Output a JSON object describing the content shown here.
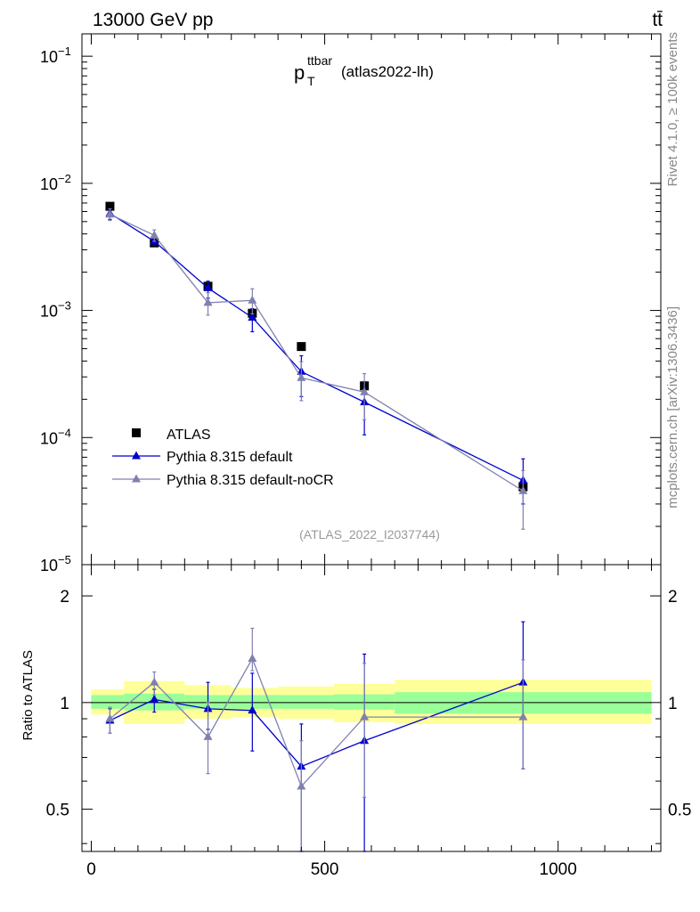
{
  "header": {
    "left": "13000 GeV pp",
    "right": "tt̄"
  },
  "side_text": {
    "rivet": "Rivet 4.1.0, ≥ 100k events",
    "mcplots": "mcplots.cern.ch [arXiv:1306.3436]"
  },
  "chart_data": {
    "type": "scatter",
    "title": {
      "base": "p",
      "sup": "ttbar",
      "sub": "T",
      "suffix": "(atlas2022-lh)"
    },
    "analysis_label": "(ATLAS_2022_I2037744)",
    "x": [
      40,
      135,
      250,
      345,
      450,
      585,
      925
    ],
    "xlim": [
      -20,
      1220
    ],
    "x_ticks": [
      0,
      500,
      1000
    ],
    "x_tick_labels": [
      "0",
      "500",
      "1000"
    ],
    "top_panel": {
      "yscale": "log",
      "ylim": [
        1e-05,
        0.15
      ],
      "y_ticks": [
        {
          "value": 0.1,
          "base": "10",
          "exp": "−1"
        },
        {
          "value": 0.01,
          "base": "10",
          "exp": "−2"
        },
        {
          "value": 0.001,
          "base": "10",
          "exp": "−3"
        },
        {
          "value": 0.0001,
          "base": "10",
          "exp": "−4"
        },
        {
          "value": 1e-05,
          "base": "10",
          "exp": "−5"
        }
      ],
      "series": [
        {
          "name": "ATLAS",
          "marker": "square",
          "color": "#000000",
          "values": [
            0.0066,
            0.0034,
            0.00155,
            0.00095,
            0.00052,
            0.000255,
            4.1e-05
          ],
          "err_lo": [
            0.0003,
            0.00015,
            0.0001,
            8e-05,
            3e-05,
            2e-05,
            3e-06
          ],
          "err_hi": [
            0.0003,
            0.00015,
            0.0001,
            8e-05,
            3e-05,
            2e-05,
            3e-06
          ]
        },
        {
          "name": "Pythia 8.315 default",
          "marker": "triangle",
          "color": "#0000cc",
          "values": [
            0.0058,
            0.0035,
            0.0015,
            0.00088,
            0.00033,
            0.00019,
            4.6e-05
          ],
          "err_lo": [
            0.0006,
            0.00025,
            0.00025,
            0.0002,
            0.00012,
            8.5e-05,
            1.6e-05
          ],
          "err_hi": [
            0.0005,
            0.00022,
            0.0002,
            0.00015,
            0.00011,
            8.5e-05,
            2.2e-05
          ]
        },
        {
          "name": "Pythia 8.315 default-noCR",
          "marker": "triangle",
          "color": "#8080b0",
          "values": [
            0.0057,
            0.0039,
            0.00115,
            0.0012,
            0.000295,
            0.000228,
            3.8e-05
          ],
          "err_lo": [
            0.0006,
            0.0004,
            0.00023,
            0.00026,
            0.0001,
            9e-05,
            1.9e-05
          ],
          "err_hi": [
            0.0006,
            0.0004,
            0.00023,
            0.00028,
            0.0001,
            9e-05,
            1.7e-05
          ]
        }
      ]
    },
    "ratio_panel": {
      "ylabel": "Ratio to ATLAS",
      "yscale": "log",
      "ylim": [
        0.38,
        2.45
      ],
      "y_ticks": [
        0.5,
        1,
        2
      ],
      "y_tick_labels": [
        "0.5",
        "1",
        "2"
      ],
      "bins": [
        {
          "x_lo": 0,
          "x_hi": 70,
          "stat_lo": 0.96,
          "stat_hi": 1.05,
          "tot_lo": 0.925,
          "tot_hi": 1.09
        },
        {
          "x_lo": 70,
          "x_hi": 200,
          "stat_lo": 0.95,
          "stat_hi": 1.06,
          "tot_lo": 0.87,
          "tot_hi": 1.15
        },
        {
          "x_lo": 200,
          "x_hi": 300,
          "stat_lo": 0.96,
          "stat_hi": 1.05,
          "tot_lo": 0.9,
          "tot_hi": 1.12
        },
        {
          "x_lo": 300,
          "x_hi": 400,
          "stat_lo": 0.96,
          "stat_hi": 1.05,
          "tot_lo": 0.91,
          "tot_hi": 1.1
        },
        {
          "x_lo": 400,
          "x_hi": 520,
          "stat_lo": 0.96,
          "stat_hi": 1.05,
          "tot_lo": 0.9,
          "tot_hi": 1.11
        },
        {
          "x_lo": 520,
          "x_hi": 650,
          "stat_lo": 0.955,
          "stat_hi": 1.055,
          "tot_lo": 0.88,
          "tot_hi": 1.13
        },
        {
          "x_lo": 650,
          "x_hi": 1200,
          "stat_lo": 0.93,
          "stat_hi": 1.07,
          "tot_lo": 0.87,
          "tot_hi": 1.16
        }
      ],
      "series": [
        {
          "name": "Pythia 8.315 default",
          "color": "#0000cc",
          "values": [
            0.89,
            1.02,
            0.96,
            0.95,
            0.66,
            0.78,
            1.14
          ],
          "err_lo": [
            0.07,
            0.08,
            0.12,
            0.22,
            0.28,
            0.41,
            0.49
          ],
          "err_hi": [
            0.07,
            0.07,
            0.18,
            0.26,
            0.21,
            0.59,
            0.55
          ]
        },
        {
          "name": "Pythia 8.315 default-noCR",
          "color": "#8080b0",
          "values": [
            0.9,
            1.14,
            0.8,
            1.33,
            0.58,
            0.91,
            0.91
          ],
          "err_lo": [
            0.08,
            0.09,
            0.17,
            0.1,
            0.2,
            0.37,
            0.26
          ],
          "err_hi": [
            0.07,
            0.08,
            0.2,
            0.29,
            0.2,
            0.38,
            0.41
          ]
        }
      ]
    }
  }
}
